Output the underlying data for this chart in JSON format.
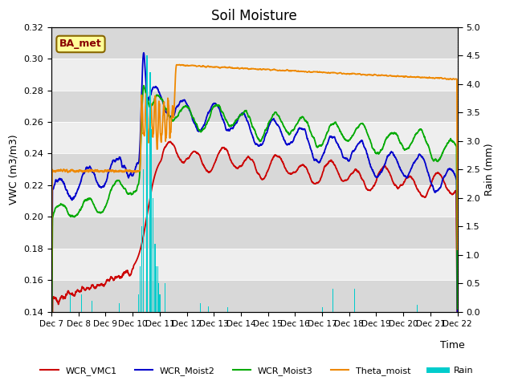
{
  "title": "Soil Moisture",
  "ylabel_left": "VWC (m3/m3)",
  "ylabel_right": "Rain (mm)",
  "xlabel": "Time",
  "annotation": "BA_met",
  "ylim_left": [
    0.14,
    0.32
  ],
  "ylim_right": [
    0.0,
    5.0
  ],
  "yticks_left": [
    0.14,
    0.16,
    0.18,
    0.2,
    0.22,
    0.24,
    0.26,
    0.28,
    0.3,
    0.32
  ],
  "yticks_right": [
    0.0,
    0.5,
    1.0,
    1.5,
    2.0,
    2.5,
    3.0,
    3.5,
    4.0,
    4.5,
    5.0
  ],
  "colors": {
    "WCR_VMC1": "#cc0000",
    "WCR_Moist2": "#0000cc",
    "WCR_Moist3": "#00aa00",
    "Theta_moist": "#ee8800",
    "Rain": "#00cccc",
    "background_dark": "#d8d8d8",
    "background_light": "#eeeeee",
    "annotation_bg": "#ffff99",
    "annotation_border": "#886600",
    "annotation_text": "#880000"
  },
  "xtick_labels": [
    "Dec 7",
    "Dec 8",
    "Dec 9",
    "Dec 10",
    "Dec 11",
    "Dec 12",
    "Dec 13",
    "Dec 14",
    "Dec 15",
    "Dec 16",
    "Dec 17",
    "Dec 18",
    "Dec 19",
    "Dec 20",
    "Dec 21",
    "Dec 22"
  ],
  "legend_labels": [
    "WCR_VMC1",
    "WCR_Moist2",
    "WCR_Moist3",
    "Theta_moist",
    "Rain"
  ]
}
